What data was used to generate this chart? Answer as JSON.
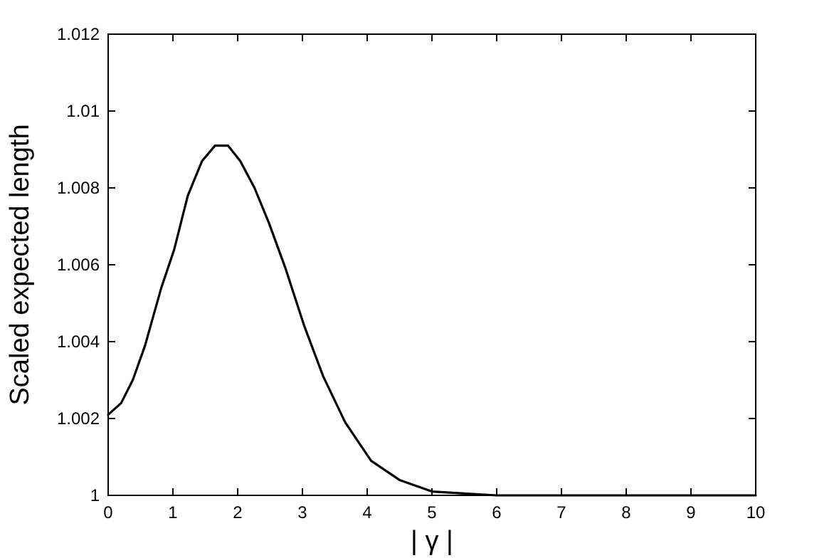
{
  "chart_data": {
    "type": "line",
    "xlabel": "| γ |",
    "ylabel": "Scaled expected length",
    "x": [
      0,
      0.2,
      0.38,
      0.57,
      0.82,
      1.02,
      1.23,
      1.45,
      1.65,
      1.85,
      2.04,
      2.26,
      2.48,
      2.74,
      3.03,
      3.32,
      3.66,
      4.06,
      4.5,
      5,
      5.5,
      6,
      7,
      8,
      9,
      10
    ],
    "series": [
      {
        "color": "#000000",
        "values": [
          1.0021,
          1.0024,
          1.003,
          1.0039,
          1.0054,
          1.0064,
          1.0078,
          1.0087,
          1.0091,
          1.0091,
          1.0087,
          1.008,
          1.0071,
          1.0059,
          1.0044,
          1.0031,
          1.0019,
          1.0009,
          1.0004,
          1.0001,
          1.00005,
          1,
          1,
          1,
          1,
          1
        ]
      }
    ],
    "xlim": [
      0,
      10
    ],
    "xticks": [
      0,
      1,
      2,
      3,
      4,
      5,
      6,
      7,
      8,
      9,
      10
    ],
    "ylim": [
      1,
      1.012
    ],
    "yticks": [
      1,
      1.002,
      1.004,
      1.006,
      1.008,
      1.01,
      1.012
    ],
    "grid": false,
    "marker": "none",
    "line_style": "solid"
  }
}
